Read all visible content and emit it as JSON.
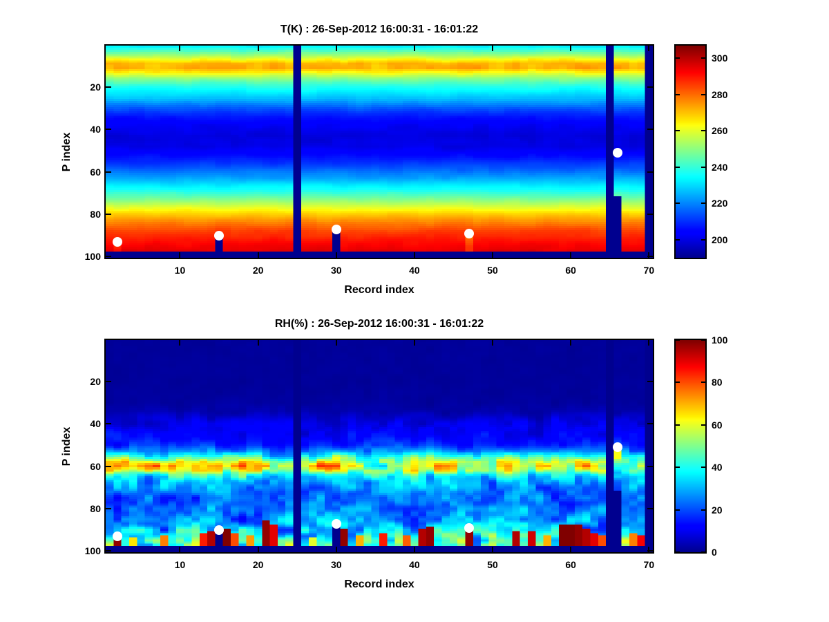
{
  "window": {
    "background": "#ffffff",
    "text_color": "#000000",
    "frame_color": "#000000",
    "missing_data_color": "#00008f",
    "marker_color": "#ffffff"
  },
  "chart_data": [
    {
      "type": "heatmap",
      "variable": "T",
      "units": "K",
      "title": "T(K) : 26-Sep-2012 16:00:31 - 16:01:22",
      "xlabel": "Record index",
      "ylabel": "P index",
      "n_records": 70,
      "n_levels": 100,
      "x_ticks": [
        10,
        20,
        30,
        40,
        50,
        60,
        70
      ],
      "y_ticks": [
        20,
        40,
        60,
        80,
        100
      ],
      "y_axis_reversed": true,
      "colormap": "jet",
      "value_range": [
        190,
        307
      ],
      "colorbar_ticks": [
        200,
        220,
        240,
        260,
        280,
        300
      ],
      "legend_position": "right-colorbar",
      "grid": false,
      "mean_profile": {
        "p": [
          1,
          3,
          5,
          7,
          9,
          11,
          13,
          16,
          19,
          22,
          26,
          30,
          34,
          38,
          43,
          48,
          53,
          58,
          63,
          68,
          72,
          76,
          80,
          84,
          88,
          92,
          95,
          97,
          100
        ],
        "value": [
          233,
          243,
          252,
          262,
          271,
          272,
          264,
          250,
          240,
          233,
          225,
          215,
          207,
          202,
          199,
          200,
          206,
          214,
          224,
          235,
          246,
          258,
          269,
          278,
          285,
          290,
          293,
          295,
          296
        ]
      },
      "variability": {
        "amplitude": 2.2,
        "band_extra_amplitude": 2.6,
        "band_center_p": 10,
        "band_width_p": 7
      },
      "anomalies": [
        {
          "record": 47,
          "from_p": 90,
          "to_p": 97,
          "delta": -8
        },
        {
          "record": 2,
          "from_p": 94,
          "to_p": 97,
          "delta": -5
        }
      ],
      "missing_records": [
        25,
        65,
        70
      ],
      "missing_below_surface": [
        {
          "record": 15,
          "from_p": 91
        },
        {
          "record": 30,
          "from_p": 88
        },
        {
          "record": 66,
          "from_p": 72
        }
      ],
      "missing_bottom_from_p": 98,
      "surface_markers": [
        {
          "record": 2,
          "p": 93
        },
        {
          "record": 15,
          "p": 90
        },
        {
          "record": 30,
          "p": 87
        },
        {
          "record": 47,
          "p": 89
        },
        {
          "record": 66,
          "p": 51
        }
      ]
    },
    {
      "type": "heatmap",
      "variable": "RH",
      "units": "%",
      "title": "RH(%) : 26-Sep-2012 16:00:31 - 16:01:22",
      "xlabel": "Record index",
      "ylabel": "P index",
      "n_records": 70,
      "n_levels": 100,
      "x_ticks": [
        10,
        20,
        30,
        40,
        50,
        60,
        70
      ],
      "y_ticks": [
        20,
        40,
        60,
        80,
        100
      ],
      "y_axis_reversed": true,
      "colormap": "jet",
      "value_range": [
        0,
        100
      ],
      "colorbar_ticks": [
        0,
        20,
        40,
        60,
        80,
        100
      ],
      "legend_position": "right-colorbar",
      "grid": false,
      "mean_profile": {
        "p": [
          1,
          20,
          30,
          34,
          38,
          42,
          46,
          50,
          53,
          56,
          58,
          60,
          62,
          64,
          66,
          68,
          70,
          73,
          77,
          81,
          85,
          89,
          93,
          96,
          100
        ],
        "value": [
          1,
          1,
          1.5,
          3,
          7,
          10,
          12,
          16,
          26,
          46,
          57,
          60,
          55,
          42,
          35,
          30,
          27,
          23,
          22,
          24,
          26,
          30,
          36,
          40,
          38
        ]
      },
      "variability": {
        "relative_amplitude_points": {
          "p": [
            1,
            35,
            52,
            66,
            80,
            97
          ],
          "amp": [
            0.8,
            0.8,
            0.45,
            0.5,
            0.6,
            0.75
          ]
        }
      },
      "near_surface_moist_columns": [
        {
          "record": 2,
          "from_p": 93,
          "to_p": 97,
          "value": 98
        },
        {
          "record": 4,
          "from_p": 94,
          "to_p": 97,
          "value": 65
        },
        {
          "record": 8,
          "from_p": 93,
          "to_p": 97,
          "value": 75
        },
        {
          "record": 13,
          "from_p": 92,
          "to_p": 97,
          "value": 85
        },
        {
          "record": 14,
          "from_p": 91,
          "to_p": 97,
          "value": 95
        },
        {
          "record": 16,
          "from_p": 90,
          "to_p": 97,
          "value": 100
        },
        {
          "record": 17,
          "from_p": 92,
          "to_p": 97,
          "value": 80
        },
        {
          "record": 19,
          "from_p": 93,
          "to_p": 97,
          "value": 72
        },
        {
          "record": 21,
          "from_p": 86,
          "to_p": 97,
          "value": 98
        },
        {
          "record": 22,
          "from_p": 88,
          "to_p": 97,
          "value": 90
        },
        {
          "record": 27,
          "from_p": 94,
          "to_p": 97,
          "value": 60
        },
        {
          "record": 31,
          "from_p": 90,
          "to_p": 97,
          "value": 98
        },
        {
          "record": 33,
          "from_p": 93,
          "to_p": 97,
          "value": 70
        },
        {
          "record": 36,
          "from_p": 92,
          "to_p": 97,
          "value": 85
        },
        {
          "record": 39,
          "from_p": 93,
          "to_p": 97,
          "value": 78
        },
        {
          "record": 41,
          "from_p": 90,
          "to_p": 97,
          "value": 95
        },
        {
          "record": 42,
          "from_p": 89,
          "to_p": 97,
          "value": 98
        },
        {
          "record": 47,
          "from_p": 90,
          "to_p": 97,
          "value": 98
        },
        {
          "record": 53,
          "from_p": 91,
          "to_p": 97,
          "value": 95
        },
        {
          "record": 55,
          "from_p": 91,
          "to_p": 97,
          "value": 92
        },
        {
          "record": 57,
          "from_p": 93,
          "to_p": 97,
          "value": 70
        },
        {
          "record": 59,
          "from_p": 88,
          "to_p": 97,
          "value": 100
        },
        {
          "record": 60,
          "from_p": 88,
          "to_p": 97,
          "value": 100
        },
        {
          "record": 61,
          "from_p": 88,
          "to_p": 97,
          "value": 98
        },
        {
          "record": 62,
          "from_p": 90,
          "to_p": 97,
          "value": 95
        },
        {
          "record": 63,
          "from_p": 92,
          "to_p": 97,
          "value": 90
        },
        {
          "record": 64,
          "from_p": 93,
          "to_p": 97,
          "value": 80
        },
        {
          "record": 66,
          "from_p": 52,
          "to_p": 56,
          "value": 62
        },
        {
          "record": 68,
          "from_p": 92,
          "to_p": 97,
          "value": 75
        },
        {
          "record": 69,
          "from_p": 93,
          "to_p": 97,
          "value": 88
        }
      ],
      "missing_records": [
        25,
        65,
        70
      ],
      "missing_below_surface": [
        {
          "record": 15,
          "from_p": 91
        },
        {
          "record": 30,
          "from_p": 88
        },
        {
          "record": 66,
          "from_p": 72
        }
      ],
      "missing_bottom_from_p": 98,
      "surface_markers": [
        {
          "record": 2,
          "p": 93
        },
        {
          "record": 15,
          "p": 90
        },
        {
          "record": 30,
          "p": 87
        },
        {
          "record": 47,
          "p": 89
        },
        {
          "record": 66,
          "p": 51
        }
      ]
    }
  ]
}
